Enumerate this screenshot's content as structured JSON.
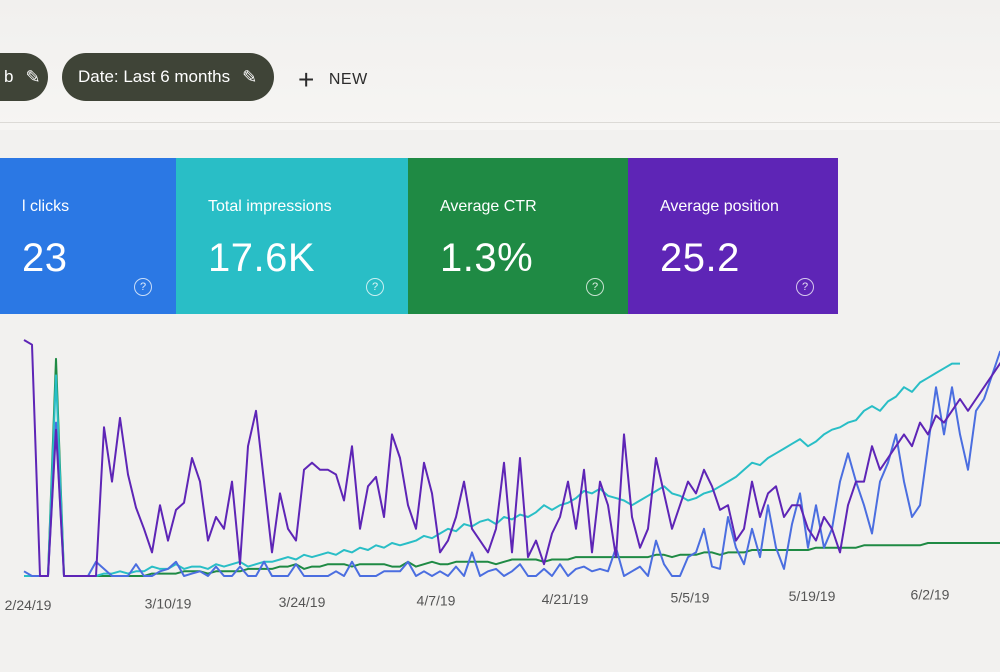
{
  "toolbar": {
    "chip_left_label": "b",
    "date_filter_label": "Date: Last 6 months",
    "new_button_label": "NEW",
    "edit_icon": "pencil-icon",
    "add_icon": "plus-icon"
  },
  "metrics": [
    {
      "label": "l clicks",
      "value": "23",
      "color": "#2b78e4"
    },
    {
      "label": "Total impressions",
      "value": "17.6K",
      "color": "#29bec6"
    },
    {
      "label": "Average CTR",
      "value": "1.3%",
      "color": "#1f8a44"
    },
    {
      "label": "Average position",
      "value": "25.2",
      "color": "#5e25b6"
    }
  ],
  "help_icon": "help-circle-icon",
  "chart_data": {
    "type": "line",
    "x_tick_labels": [
      "2/24/19",
      "3/10/19",
      "3/24/19",
      "4/7/19",
      "4/21/19",
      "5/5/19",
      "5/19/19",
      "6/2/19"
    ],
    "grid": false,
    "series": [
      {
        "color": "#1f8a44",
        "values": [
          0,
          0,
          0,
          0,
          92,
          0,
          0,
          0,
          0,
          0,
          0,
          0,
          0,
          0,
          0,
          0,
          1,
          1,
          1,
          1,
          2,
          2,
          2,
          1,
          2,
          2,
          2,
          2,
          3,
          3,
          3,
          3,
          4,
          4,
          5,
          3,
          4,
          4,
          5,
          5,
          5,
          4,
          5,
          5,
          5,
          5,
          4,
          4,
          6,
          4,
          5,
          6,
          5,
          5,
          6,
          6,
          6,
          6,
          6,
          5,
          6,
          7,
          7,
          7,
          7,
          6,
          7,
          7,
          7,
          8,
          8,
          8,
          8,
          8,
          8,
          8,
          8,
          8,
          8,
          9,
          9,
          8,
          9,
          9,
          9,
          10,
          10,
          9,
          10,
          10,
          10,
          11,
          11,
          11,
          11,
          11,
          11,
          11,
          11,
          12,
          12,
          12,
          12,
          12,
          12,
          13,
          13,
          13,
          13,
          13,
          13,
          13,
          13,
          14,
          14,
          14,
          14,
          14,
          14,
          14,
          14,
          14,
          14
        ]
      },
      {
        "color": "#29bec6",
        "values": [
          0,
          0,
          0,
          0,
          85,
          0,
          0,
          0,
          0,
          0,
          1,
          1,
          2,
          1,
          2,
          2,
          4,
          3,
          3,
          5,
          3,
          4,
          4,
          3,
          5,
          4,
          5,
          6,
          4,
          5,
          6,
          6,
          7,
          8,
          7,
          9,
          8,
          9,
          10,
          9,
          11,
          10,
          12,
          11,
          13,
          12,
          14,
          13,
          14,
          15,
          17,
          16,
          18,
          20,
          19,
          22,
          21,
          23,
          24,
          22,
          25,
          24,
          26,
          25,
          27,
          30,
          28,
          30,
          31,
          33,
          36,
          35,
          37,
          34,
          33,
          32,
          30,
          32,
          34,
          36,
          38,
          35,
          34,
          32,
          33,
          35,
          36,
          38,
          40,
          42,
          45,
          48,
          47,
          50,
          52,
          54,
          56,
          58,
          55,
          57,
          60,
          62,
          63,
          65,
          66,
          70,
          72,
          70,
          74,
          76,
          80,
          78,
          82,
          84,
          86,
          88,
          90,
          90
        ]
      },
      {
        "color": "#4b6ee0",
        "values": [
          2,
          0,
          0,
          0,
          65,
          0,
          0,
          0,
          0,
          6,
          3,
          0,
          0,
          0,
          5,
          0,
          0,
          2,
          3,
          6,
          0,
          1,
          2,
          0,
          4,
          0,
          0,
          4,
          0,
          0,
          6,
          0,
          0,
          0,
          5,
          0,
          0,
          0,
          0,
          2,
          0,
          6,
          0,
          0,
          0,
          2,
          2,
          2,
          6,
          0,
          2,
          0,
          2,
          0,
          4,
          0,
          10,
          0,
          2,
          3,
          0,
          2,
          5,
          0,
          0,
          3,
          0,
          5,
          0,
          3,
          4,
          2,
          3,
          2,
          12,
          0,
          2,
          4,
          0,
          15,
          5,
          0,
          0,
          8,
          10,
          20,
          4,
          3,
          25,
          12,
          5,
          20,
          8,
          30,
          12,
          3,
          22,
          35,
          12,
          30,
          12,
          20,
          40,
          52,
          40,
          30,
          18,
          40,
          48,
          60,
          40,
          25,
          30,
          55,
          80,
          60,
          80,
          60,
          45,
          70,
          75,
          85,
          95,
          88
        ]
      },
      {
        "color": "#5e25b6",
        "values": [
          100,
          98,
          0,
          0,
          62,
          0,
          0,
          0,
          0,
          0,
          63,
          40,
          67,
          43,
          29,
          20,
          10,
          30,
          15,
          28,
          31,
          50,
          40,
          15,
          25,
          20,
          40,
          5,
          55,
          70,
          40,
          10,
          35,
          20,
          15,
          45,
          48,
          45,
          45,
          43,
          32,
          55,
          20,
          38,
          42,
          25,
          60,
          50,
          30,
          20,
          48,
          35,
          10,
          15,
          25,
          40,
          20,
          15,
          10,
          20,
          48,
          10,
          50,
          8,
          15,
          5,
          18,
          25,
          40,
          20,
          45,
          10,
          40,
          30,
          8,
          60,
          25,
          12,
          20,
          50,
          35,
          20,
          30,
          40,
          35,
          45,
          38,
          28,
          30,
          15,
          20,
          40,
          25,
          35,
          38,
          25,
          30,
          30,
          20,
          15,
          25,
          20,
          10,
          30,
          40,
          40,
          55,
          45,
          50,
          55,
          60,
          55,
          65,
          60,
          68,
          65,
          70,
          75,
          70,
          75,
          80,
          85,
          90,
          95
        ]
      }
    ]
  }
}
